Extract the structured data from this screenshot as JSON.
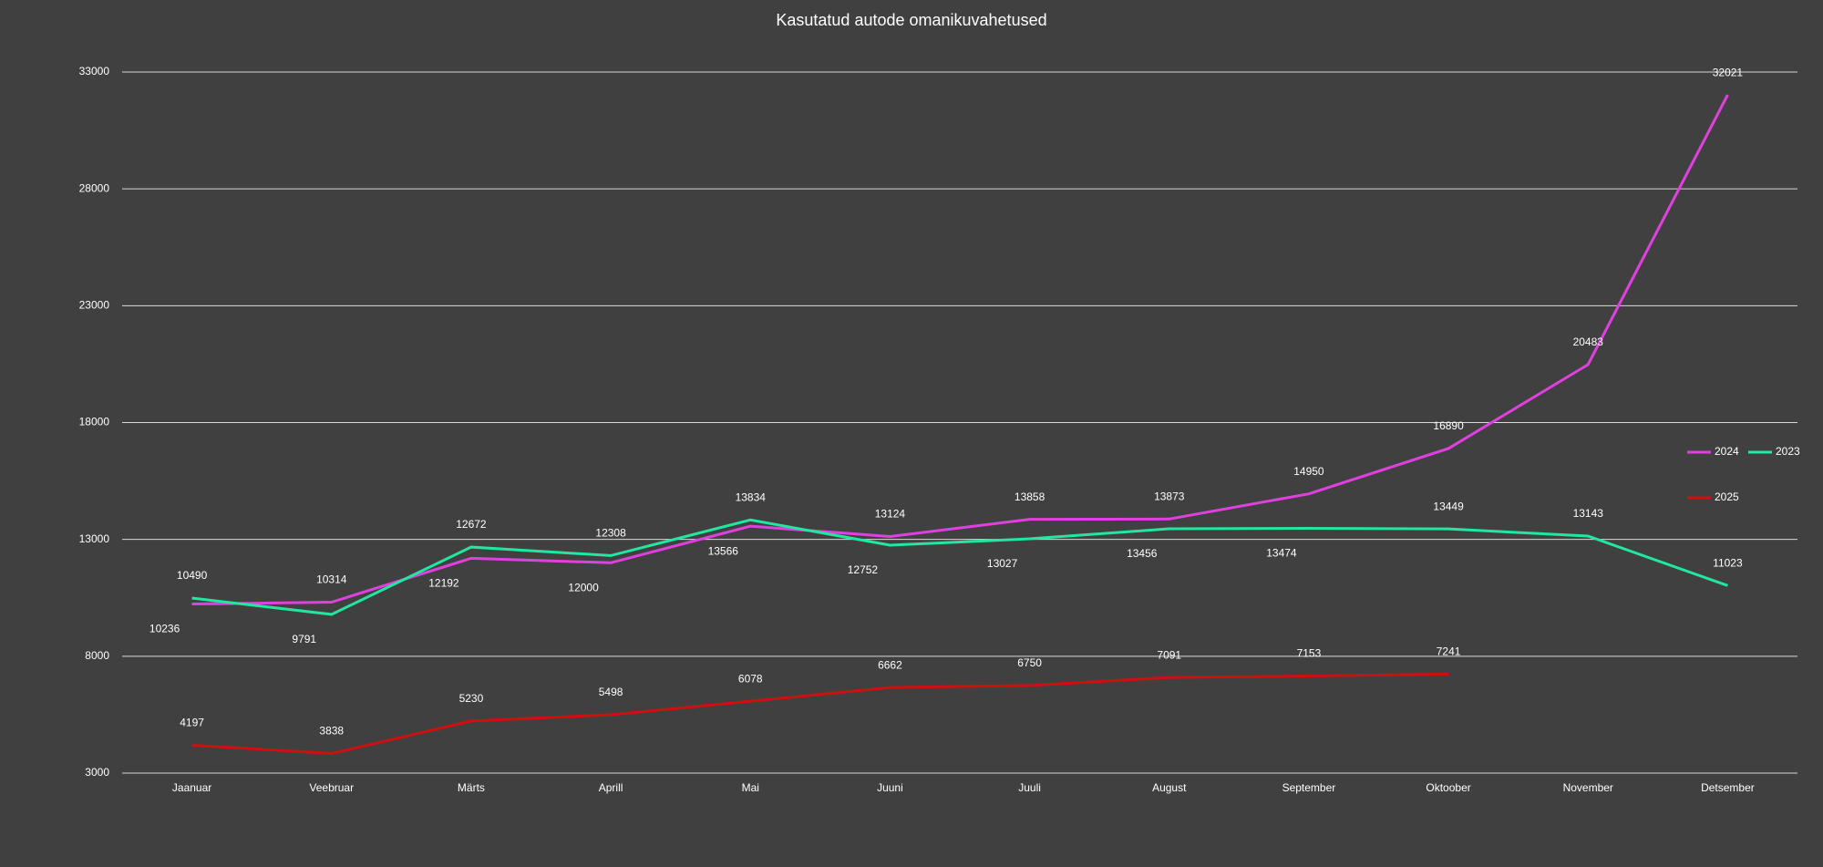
{
  "chart_data": {
    "type": "line",
    "title": "Kasutatud autode omanikuvahetused",
    "categories": [
      "Jaanuar",
      "Veebruar",
      "Märts",
      "Aprill",
      "Mai",
      "Juuni",
      "Juuli",
      "August",
      "September",
      "Oktoober",
      "November",
      "Detsember"
    ],
    "series": [
      {
        "name": "2024",
        "color": "#e040e0",
        "values": [
          10236,
          10314,
          12192,
          12000,
          13566,
          13124,
          13858,
          13873,
          14950,
          16890,
          20483,
          32021
        ]
      },
      {
        "name": "2023",
        "color": "#20e8a0",
        "values": [
          10490,
          9791,
          12672,
          12308,
          13834,
          12752,
          13027,
          13456,
          13474,
          13449,
          13143,
          11023
        ]
      },
      {
        "name": "2025",
        "color": "#d01010",
        "values": [
          4197,
          3838,
          5230,
          5498,
          6078,
          6662,
          6750,
          7091,
          7153,
          7241,
          null,
          null
        ]
      }
    ],
    "ylim": [
      3000,
      33000
    ],
    "yticks": [
      3000,
      8000,
      13000,
      18000,
      23000,
      28000,
      33000
    ],
    "grid": true,
    "legend": "right"
  }
}
